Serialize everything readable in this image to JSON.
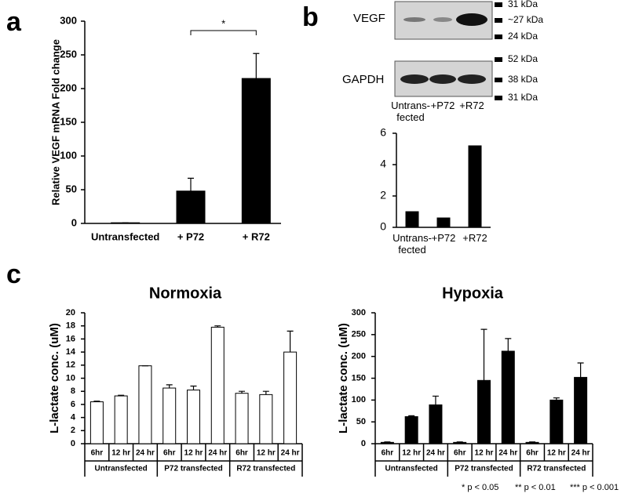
{
  "panels": [
    "a",
    "b",
    "c"
  ],
  "chart_data": [
    {
      "type": "bar",
      "ylabel": "Relative VEGF mRNA Fold change",
      "categories": [
        "Untransfected",
        "+ P72",
        "+ R72"
      ],
      "values": [
        1,
        48,
        215
      ],
      "errors": [
        0,
        19,
        37
      ],
      "color": "#000000",
      "ylim": [
        0,
        300
      ],
      "yticks": [
        0,
        50,
        100,
        150,
        200,
        250,
        300
      ],
      "significance": "*"
    },
    {
      "type": "bar",
      "categories": [
        "Untrans- fected",
        "+P72",
        "+R72"
      ],
      "values": [
        1,
        0.6,
        5.2
      ],
      "color": "#000000",
      "ylim": [
        0,
        6
      ],
      "yticks": [
        0,
        2,
        4,
        6
      ]
    },
    {
      "type": "bar",
      "title": "Normoxia",
      "ylabel": "L-lactate conc. (uM)",
      "categories": [
        "6hr",
        "12 hr",
        "24 hr",
        "6hr",
        "12 hr",
        "24 hr",
        "6hr",
        "12 hr",
        "24 hr"
      ],
      "groups": [
        "Untransfected",
        "P72 transfected",
        "R72 transfected"
      ],
      "values": [
        6.4,
        7.3,
        11.9,
        8.5,
        8.2,
        17.8,
        7.7,
        7.5,
        14
      ],
      "errors": [
        0.1,
        0.1,
        0,
        0.5,
        0.6,
        0.2,
        0.3,
        0.5,
        3.2
      ],
      "color": "#ffffff",
      "ylim": [
        0,
        20
      ],
      "yticks": [
        0,
        2,
        4,
        6,
        8,
        10,
        12,
        14,
        16,
        18,
        20
      ]
    },
    {
      "type": "bar",
      "title": "Hypoxia",
      "ylabel": "L-lactate conc. (uM)",
      "categories": [
        "6hr",
        "12 hr",
        "24 hr",
        "6hr",
        "12 hr",
        "24 hr",
        "6hr",
        "12 hr",
        "24 hr"
      ],
      "groups": [
        "Untransfected",
        "P72 transfected",
        "R72 transfected"
      ],
      "values": [
        3,
        62,
        89,
        3,
        145,
        212,
        3,
        100,
        152
      ],
      "errors": [
        1,
        2,
        20,
        1,
        117,
        29,
        1,
        5,
        33
      ],
      "color": "#000000",
      "ylim": [
        0,
        300
      ],
      "yticks": [
        0,
        50,
        100,
        150,
        200,
        250,
        300
      ]
    }
  ],
  "blot": {
    "rows": [
      {
        "label": "VEGF",
        "markers": [
          "31 kDa",
          "~27 kDa",
          "24 kDa"
        ]
      },
      {
        "label": "GAPDH",
        "markers": [
          "52 kDa",
          "38 kDa",
          "31 kDa"
        ]
      }
    ],
    "lanes": [
      "Untrans- fected",
      "+P72",
      "+R72"
    ]
  },
  "footnote": [
    "* p < 0.05",
    "** p < 0.01",
    "*** p < 0.001"
  ]
}
